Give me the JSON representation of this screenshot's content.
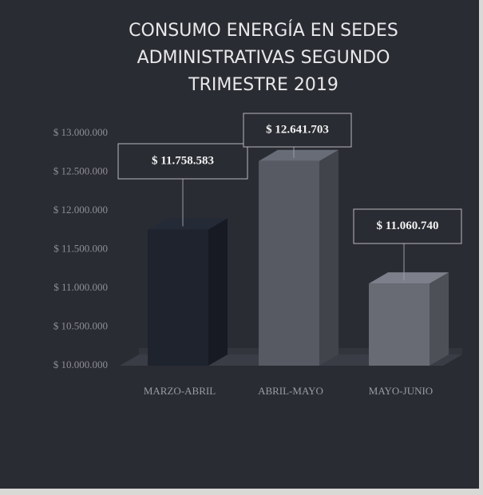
{
  "chart_data": {
    "type": "bar3d",
    "title": "CONSUMO ENERGÍA EN SEDES ADMINISTRATIVAS SEGUNDO TRIMESTRE 2019",
    "categories": [
      "MARZO-ABRIL",
      "ABRIL-MAYO",
      "MAYO-JUNIO"
    ],
    "values": [
      11758583,
      12641703,
      11060740
    ],
    "value_labels": [
      "$ 11.758.583",
      "$ 12.641.703",
      "$ 11.060.740"
    ],
    "colors": [
      "#1e232d",
      "#575a63",
      "#686b74"
    ],
    "ylim": [
      10000000,
      13000000
    ],
    "yticks": [
      {
        "value": 10000000,
        "label": "$ 10.000.000"
      },
      {
        "value": 10500000,
        "label": "$ 10.500.000"
      },
      {
        "value": 11000000,
        "label": "$ 11.000.000"
      },
      {
        "value": 11500000,
        "label": "$ 11.500.000"
      },
      {
        "value": 12000000,
        "label": "$ 12.000.000"
      },
      {
        "value": 12500000,
        "label": "$ 12.500.000"
      },
      {
        "value": 13000000,
        "label": "$ 13.000.000"
      }
    ],
    "grid": false
  }
}
